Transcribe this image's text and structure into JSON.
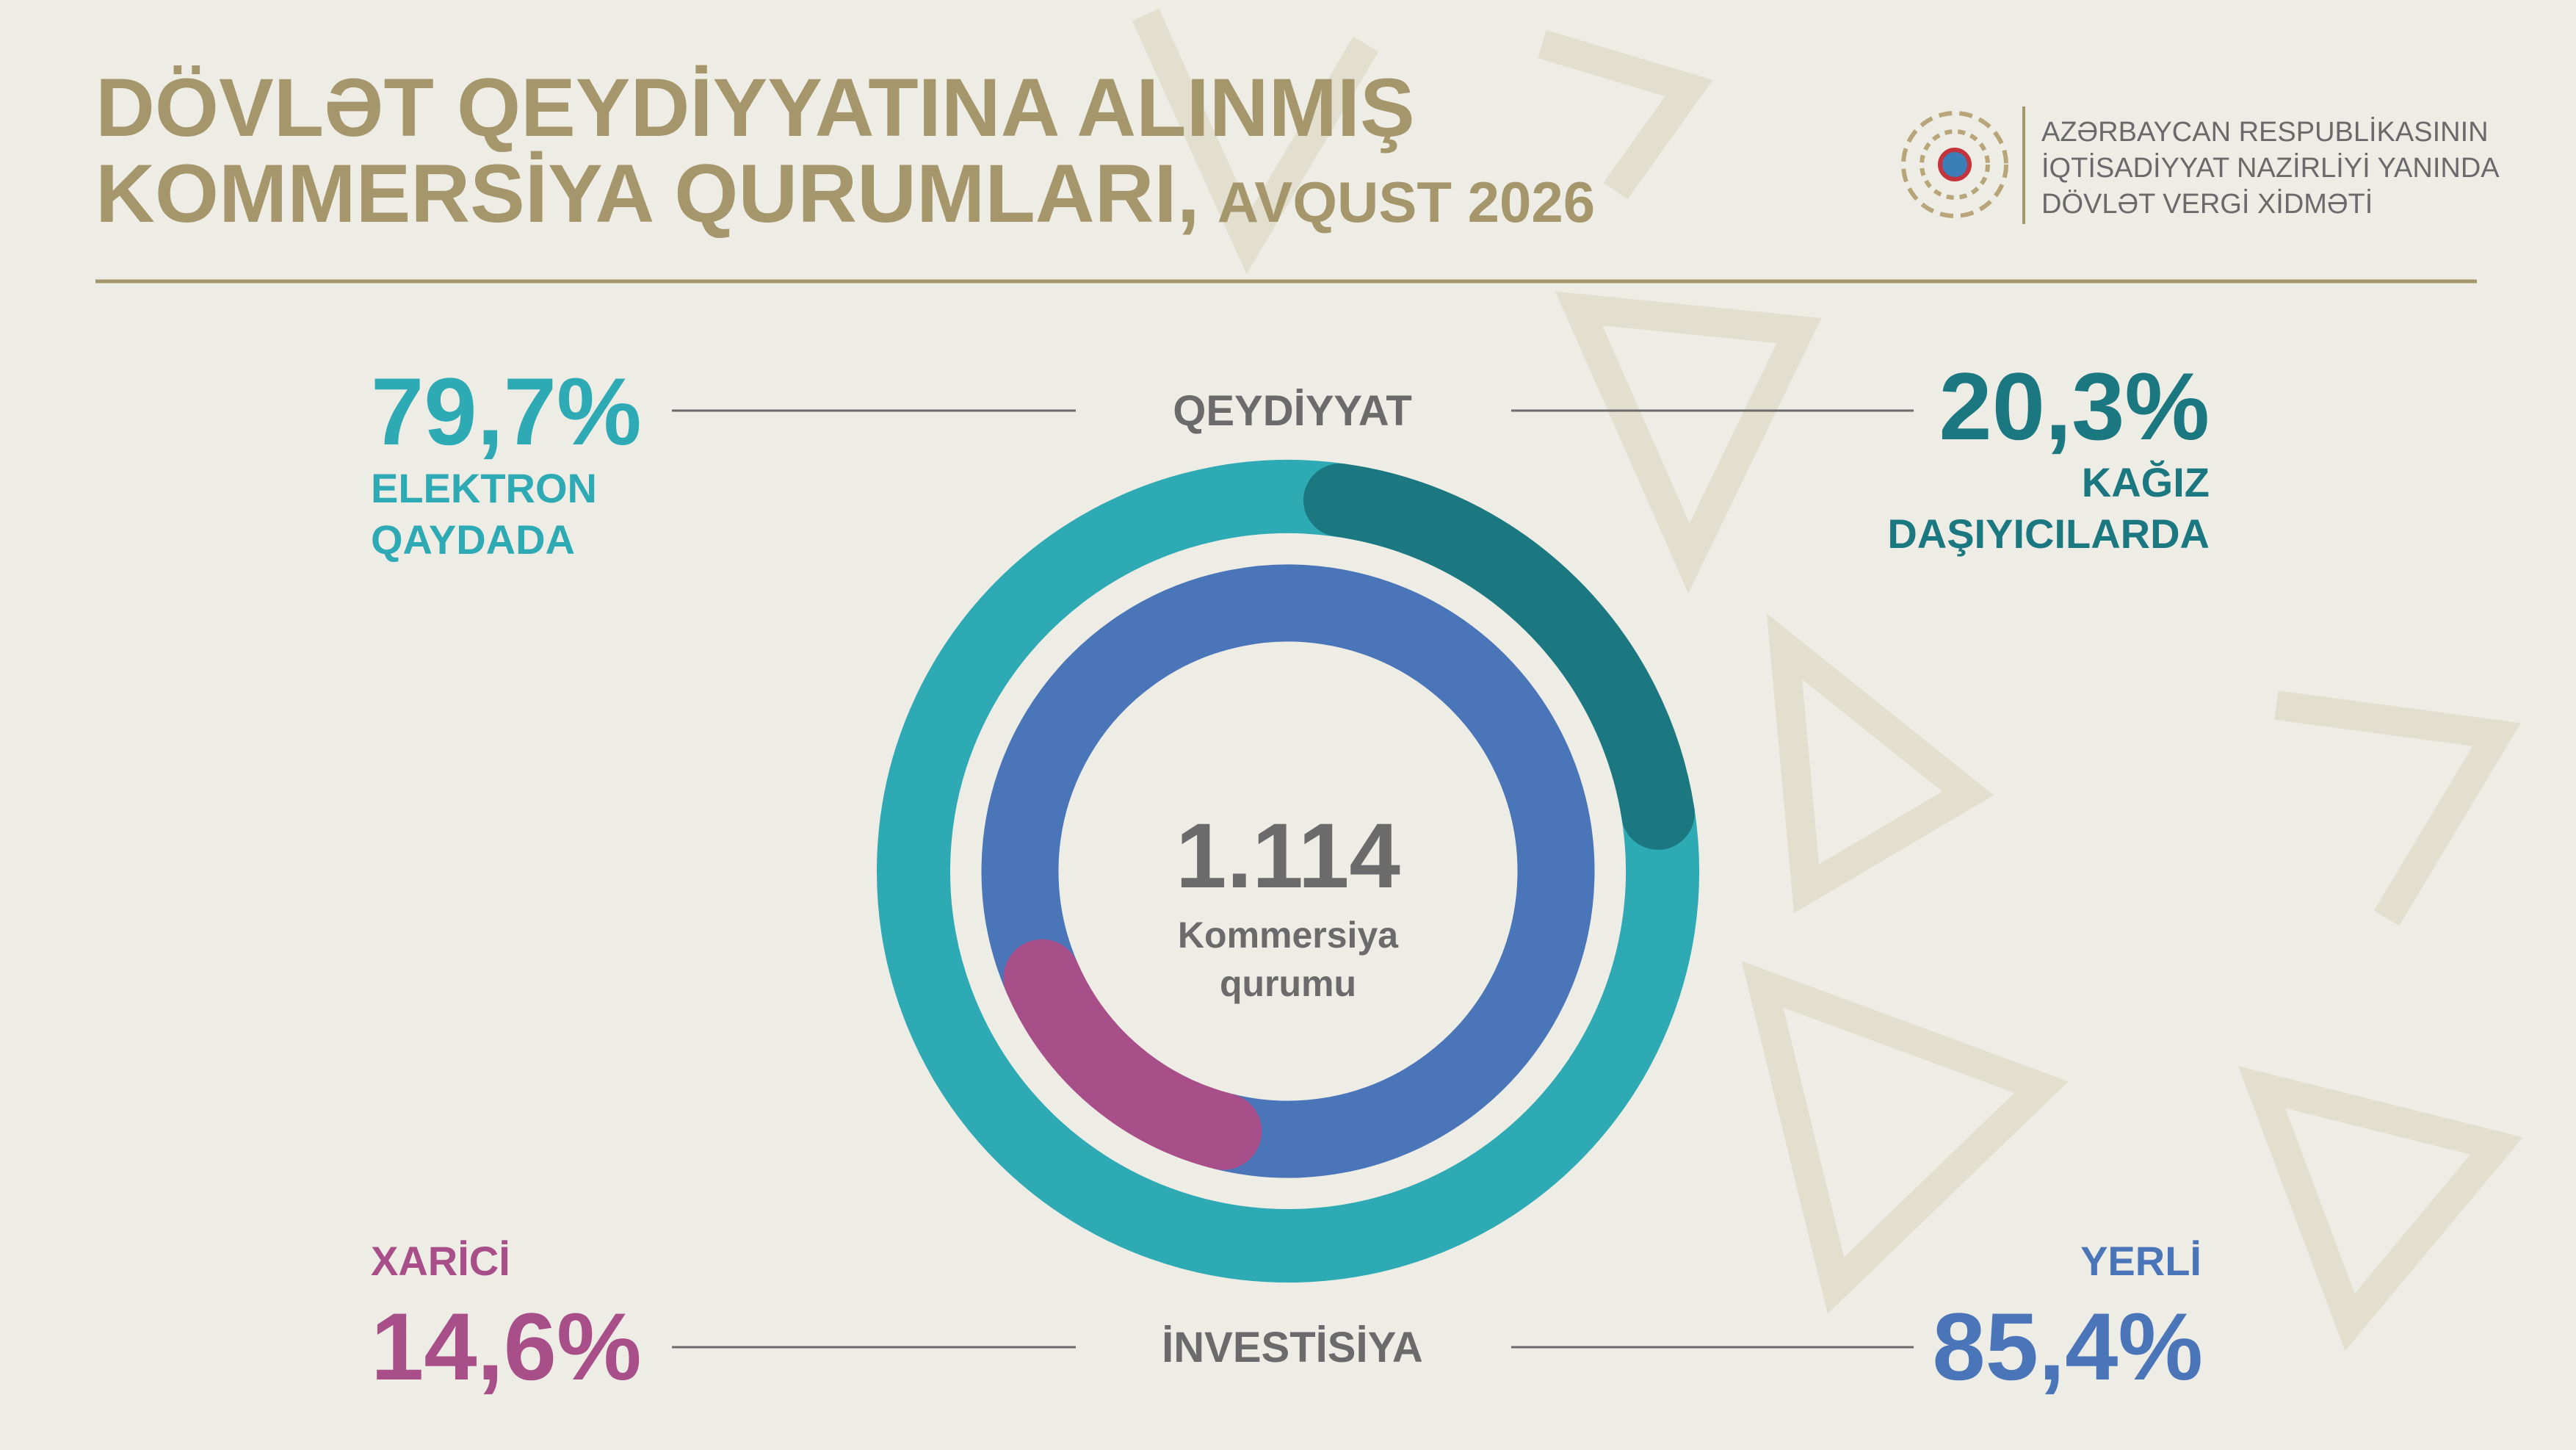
{
  "header": {
    "title_line1": "DÖVLƏT QEYDİYYATINA ALINMIŞ",
    "title_line2": "KOMMERSİYA QURUMLARI,",
    "date": "AVQUST 2026"
  },
  "logo": {
    "lines": [
      "AZƏRBAYCAN RESPUBLİKASININ",
      "İQTİSADİYYAT NAZİRLİYİ YANINDA",
      "DÖVLƏT VERGİ XİDMƏTİ"
    ]
  },
  "chart_data": {
    "type": "donut",
    "center_value": "1.114",
    "center_label": [
      "Kommersiya",
      "qurumu"
    ],
    "rings": [
      {
        "name": "QEYDİYYAT",
        "categories": [
          "ELEKTRON QAYDADA",
          "KAĞIZ DAŞIYICILARDA"
        ],
        "values": [
          79.7,
          20.3
        ],
        "value_labels": [
          "79,7%",
          "20,3%"
        ],
        "colors": [
          "#2eaab5",
          "#1b7880"
        ]
      },
      {
        "name": "İNVESTİSİYA",
        "categories": [
          "XARİCİ",
          "YERLİ"
        ],
        "values": [
          14.6,
          85.4
        ],
        "value_labels": [
          "14,6%",
          "85,4%"
        ],
        "colors": [
          "#a84f8a",
          "#4a75b9"
        ]
      }
    ]
  }
}
